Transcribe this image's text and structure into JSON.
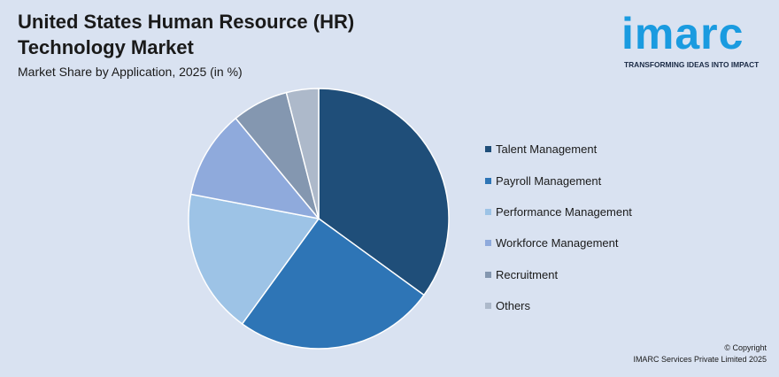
{
  "header": {
    "title": "United States Human Resource (HR) Technology Market",
    "subtitle": "Market Share by Application, 2025 (in %)"
  },
  "logo": {
    "name": "imarc",
    "tagline": "TRANSFORMING IDEAS INTO IMPACT"
  },
  "footer": {
    "copyright": "© Copyright",
    "company": "IMARC Services Private Limited 2025"
  },
  "chart_data": {
    "type": "pie",
    "title": "United States Human Resource (HR) Technology Market",
    "subtitle": "Market Share by Application, 2025 (in %)",
    "legend_position": "right",
    "categories": [
      "Talent Management",
      "Payroll Management",
      "Performance Management",
      "Workforce Management",
      "Recruitment",
      "Others"
    ],
    "values": [
      35,
      25,
      18,
      11,
      7,
      4
    ],
    "colors": [
      "#1f4e79",
      "#2e75b6",
      "#9dc3e6",
      "#8faadc",
      "#8497b0",
      "#adb9ca"
    ]
  }
}
